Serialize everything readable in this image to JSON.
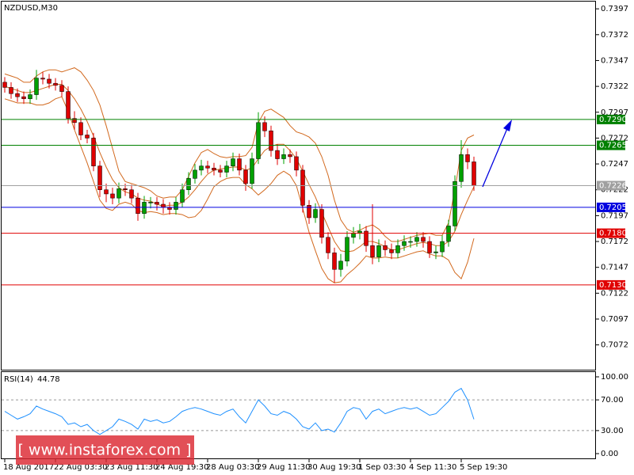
{
  "chart_data": [
    {
      "type": "candlestick",
      "title": "NZDUSD,M30",
      "categories": [
        "18 Aug 2017",
        null,
        null,
        null,
        null,
        null,
        null,
        null,
        "22 Aug 03:30",
        null,
        null,
        null,
        null,
        null,
        null,
        null,
        "23 Aug 11:30",
        null,
        null,
        null,
        null,
        null,
        null,
        null,
        "24 Aug 19:30",
        null,
        null,
        null,
        null,
        null,
        null,
        null,
        "28 Aug 03:30",
        null,
        null,
        null,
        null,
        null,
        null,
        null,
        "29 Aug 11:30",
        null,
        null,
        null,
        null,
        null,
        null,
        null,
        "30 Aug 19:30",
        null,
        null,
        null,
        null,
        null,
        null,
        null,
        "1 Sep 03:30",
        null,
        null,
        null,
        null,
        null,
        null,
        null,
        "4 Sep 11:30",
        null,
        null,
        null,
        null,
        null,
        null,
        null,
        "5 Sep 19:30",
        null,
        null
      ],
      "open": [
        0.7326,
        0.7321,
        0.7315,
        0.7312,
        0.731,
        0.7314,
        0.733,
        0.7329,
        0.7325,
        0.7323,
        0.7317,
        0.7291,
        0.7287,
        0.7275,
        0.7272,
        0.7245,
        0.7222,
        0.7218,
        0.7214,
        0.7223,
        0.7222,
        0.7214,
        0.7199,
        0.721,
        0.721,
        0.7208,
        0.7205,
        0.7203,
        0.721,
        0.7222,
        0.7233,
        0.7241,
        0.7245,
        0.7243,
        0.7241,
        0.7239,
        0.7245,
        0.7252,
        0.7241,
        0.7228,
        0.7252,
        0.7287,
        0.7279,
        0.726,
        0.7252,
        0.7256,
        0.7254,
        0.7241,
        0.7207,
        0.7195,
        0.7203,
        0.7176,
        0.7161,
        0.7145,
        0.7153,
        0.7176,
        0.718,
        0.7182,
        0.7168,
        0.7157,
        0.7168,
        0.7164,
        0.7161,
        0.7168,
        0.7172,
        0.7172,
        0.7176,
        0.7172,
        0.7161,
        0.7162,
        0.7172,
        0.7187,
        0.723,
        0.7256,
        0.7249
      ],
      "high": [
        0.7331,
        0.7326,
        0.732,
        0.7317,
        0.7319,
        0.7338,
        0.7336,
        0.7334,
        0.733,
        0.7328,
        0.7322,
        0.7298,
        0.7292,
        0.728,
        0.7277,
        0.725,
        0.7228,
        0.7224,
        0.7229,
        0.7228,
        0.7227,
        0.7219,
        0.7216,
        0.7215,
        0.7215,
        0.7213,
        0.721,
        0.7215,
        0.7228,
        0.7239,
        0.7247,
        0.7251,
        0.725,
        0.7248,
        0.7246,
        0.725,
        0.7258,
        0.7257,
        0.7246,
        0.7258,
        0.7297,
        0.7293,
        0.7284,
        0.7266,
        0.7262,
        0.7261,
        0.7259,
        0.7246,
        0.7212,
        0.7209,
        0.7208,
        0.7181,
        0.7166,
        0.716,
        0.7182,
        0.7186,
        0.7189,
        0.7187,
        0.7208,
        0.7174,
        0.7173,
        0.717,
        0.7174,
        0.7178,
        0.7177,
        0.7181,
        0.7181,
        0.7177,
        0.7168,
        0.7178,
        0.7193,
        0.7236,
        0.727,
        0.7262,
        0.7254
      ],
      "low": [
        0.7316,
        0.731,
        0.7307,
        0.7305,
        0.7305,
        0.7309,
        0.7324,
        0.732,
        0.7318,
        0.7312,
        0.7286,
        0.728,
        0.727,
        0.7267,
        0.724,
        0.7215,
        0.721,
        0.7208,
        0.7209,
        0.7216,
        0.7209,
        0.7192,
        0.7194,
        0.7204,
        0.7202,
        0.7199,
        0.7198,
        0.7198,
        0.7205,
        0.7217,
        0.7228,
        0.7236,
        0.7238,
        0.7236,
        0.7234,
        0.7234,
        0.724,
        0.7236,
        0.7221,
        0.7223,
        0.7247,
        0.7273,
        0.7254,
        0.7246,
        0.7247,
        0.7248,
        0.7235,
        0.72,
        0.7189,
        0.719,
        0.717,
        0.7155,
        0.7132,
        0.7138,
        0.7148,
        0.717,
        0.7174,
        0.7162,
        0.715,
        0.7152,
        0.7158,
        0.7155,
        0.7156,
        0.7163,
        0.7166,
        0.7167,
        0.7166,
        0.7156,
        0.7155,
        0.7157,
        0.7167,
        0.7182,
        0.7224,
        0.7242,
        0.7221
      ],
      "close": [
        0.7321,
        0.7315,
        0.7312,
        0.731,
        0.7314,
        0.733,
        0.7329,
        0.7325,
        0.7323,
        0.7317,
        0.7291,
        0.7287,
        0.7275,
        0.7272,
        0.7245,
        0.7222,
        0.7218,
        0.7214,
        0.7223,
        0.7222,
        0.7214,
        0.7199,
        0.721,
        0.721,
        0.7208,
        0.7205,
        0.7203,
        0.721,
        0.7222,
        0.7233,
        0.7241,
        0.7245,
        0.7243,
        0.7241,
        0.7239,
        0.7245,
        0.7252,
        0.7241,
        0.7228,
        0.7252,
        0.7287,
        0.7279,
        0.726,
        0.7252,
        0.7256,
        0.7254,
        0.7241,
        0.7207,
        0.7195,
        0.7203,
        0.7176,
        0.7161,
        0.7145,
        0.7153,
        0.7176,
        0.718,
        0.7182,
        0.7168,
        0.7157,
        0.7168,
        0.7164,
        0.7161,
        0.7168,
        0.7172,
        0.7172,
        0.7176,
        0.7172,
        0.7161,
        0.7162,
        0.7172,
        0.7187,
        0.723,
        0.7256,
        0.7249,
        0.7226
      ],
      "up_color": "#00a000",
      "down_color": "#e00000",
      "series": [
        {
          "color": "#d2691e",
          "values": [
            0.7334,
            0.7332,
            0.733,
            0.7326,
            0.7326,
            0.7332,
            0.7336,
            0.7338,
            0.7338,
            0.7336,
            0.7338,
            0.734,
            0.7336,
            0.7328,
            0.7318,
            0.7304,
            0.7284,
            0.7262,
            0.724,
            0.723,
            0.7228,
            0.7226,
            0.7224,
            0.7221,
            0.7216,
            0.7214,
            0.7215,
            0.7215,
            0.7222,
            0.7235,
            0.7248,
            0.7258,
            0.7261,
            0.7257,
            0.7254,
            0.7253,
            0.7254,
            0.7254,
            0.7255,
            0.7263,
            0.7287,
            0.7298,
            0.73,
            0.7296,
            0.7292,
            0.7284,
            0.7278,
            0.7276,
            0.7273,
            0.7267,
            0.7254,
            0.7236,
            0.7212,
            0.7193,
            0.7184,
            0.7181,
            0.7183,
            0.7186,
            0.7188,
            0.7184,
            0.7177,
            0.7172,
            0.7172,
            0.7174,
            0.7176,
            0.7178,
            0.7179,
            0.718,
            0.7178,
            0.7178,
            0.719,
            0.7222,
            0.726,
            0.7272,
            0.7275
          ]
        },
        {
          "color": "#d2691e",
          "values": [
            0.7322,
            0.732,
            0.7318,
            0.7316,
            0.7316,
            0.7318,
            0.732,
            0.7322,
            0.7324,
            0.7324,
            0.7318,
            0.731,
            0.73,
            0.7288,
            0.7274,
            0.7258,
            0.7244,
            0.7232,
            0.7224,
            0.722,
            0.7218,
            0.7214,
            0.7212,
            0.7211,
            0.7208,
            0.7206,
            0.7207,
            0.7207,
            0.721,
            0.7215,
            0.7222,
            0.723,
            0.7237,
            0.7241,
            0.7242,
            0.7243,
            0.7244,
            0.7244,
            0.7241,
            0.7243,
            0.7252,
            0.726,
            0.7264,
            0.7266,
            0.7266,
            0.726,
            0.7252,
            0.724,
            0.7227,
            0.7215,
            0.72,
            0.7186,
            0.7172,
            0.7163,
            0.7162,
            0.7163,
            0.7167,
            0.7172,
            0.7172,
            0.717,
            0.7167,
            0.7164,
            0.7164,
            0.7166,
            0.7168,
            0.717,
            0.7171,
            0.717,
            0.7168,
            0.7168,
            0.7172,
            0.7182,
            0.7198,
            0.7212,
            0.7225
          ]
        },
        {
          "color": "#d2691e",
          "values": [
            0.731,
            0.7308,
            0.7306,
            0.7306,
            0.7306,
            0.7304,
            0.7304,
            0.7306,
            0.731,
            0.7312,
            0.7298,
            0.728,
            0.7264,
            0.7248,
            0.723,
            0.7212,
            0.7204,
            0.7202,
            0.7208,
            0.721,
            0.7208,
            0.7202,
            0.72,
            0.7201,
            0.72,
            0.7198,
            0.7199,
            0.7199,
            0.7198,
            0.7195,
            0.7196,
            0.7202,
            0.7213,
            0.7225,
            0.723,
            0.7233,
            0.7234,
            0.7234,
            0.7227,
            0.7223,
            0.7217,
            0.7222,
            0.7228,
            0.7236,
            0.724,
            0.7236,
            0.7226,
            0.7204,
            0.7181,
            0.7163,
            0.7146,
            0.7136,
            0.7132,
            0.7133,
            0.714,
            0.7145,
            0.7151,
            0.7158,
            0.7156,
            0.7156,
            0.7157,
            0.7156,
            0.7156,
            0.7158,
            0.716,
            0.7162,
            0.7163,
            0.716,
            0.7158,
            0.7158,
            0.7154,
            0.7142,
            0.7136,
            0.7152,
            0.7175
          ]
        }
      ],
      "ylim": [
        0.7048,
        0.7404
      ],
      "yticks": [
        0.7397,
        0.7372,
        0.7347,
        0.7322,
        0.7297,
        0.7272,
        0.7247,
        0.7222,
        0.7197,
        0.7172,
        0.7147,
        0.7122,
        0.7097,
        0.7072
      ],
      "levels": [
        {
          "value": 0.729,
          "label": "0.7290"
        },
        0.7265,
        0.7226,
        0.7205,
        {
          "value": 0.718,
          "label": "0.7180"
        },
        {
          "value": 0.713,
          "label": "0.7130"
        }
      ],
      "level_colors": [
        "#008000",
        "#008000",
        "#a0a0a0",
        "#0000e0",
        "#e00000",
        "#e00000"
      ]
    },
    {
      "type": "line",
      "title": "RSI(14)",
      "series": [
        {
          "color": "#1e90ff",
          "values": [
            55,
            50,
            45,
            48,
            52,
            62,
            58,
            55,
            52,
            48,
            38,
            40,
            35,
            38,
            30,
            25,
            30,
            35,
            45,
            42,
            38,
            32,
            45,
            42,
            44,
            40,
            42,
            48,
            55,
            58,
            60,
            58,
            55,
            52,
            50,
            55,
            58,
            48,
            40,
            55,
            70,
            62,
            52,
            50,
            55,
            52,
            45,
            35,
            32,
            40,
            30,
            32,
            28,
            40,
            55,
            60,
            58,
            45,
            55,
            58,
            52,
            55,
            58,
            60,
            58,
            60,
            55,
            50,
            52,
            60,
            68,
            80,
            85,
            70,
            44.78
          ]
        }
      ],
      "ylim": [
        0,
        100
      ],
      "yticks": [
        {
          "value": 100,
          "label": "100.00"
        },
        {
          "value": 70,
          "label": "70.00"
        },
        {
          "value": 30,
          "label": "30.00"
        },
        {
          "value": 0,
          "label": "0.00"
        }
      ]
    }
  ],
  "watermark": "[ www.instaforex.com ]"
}
